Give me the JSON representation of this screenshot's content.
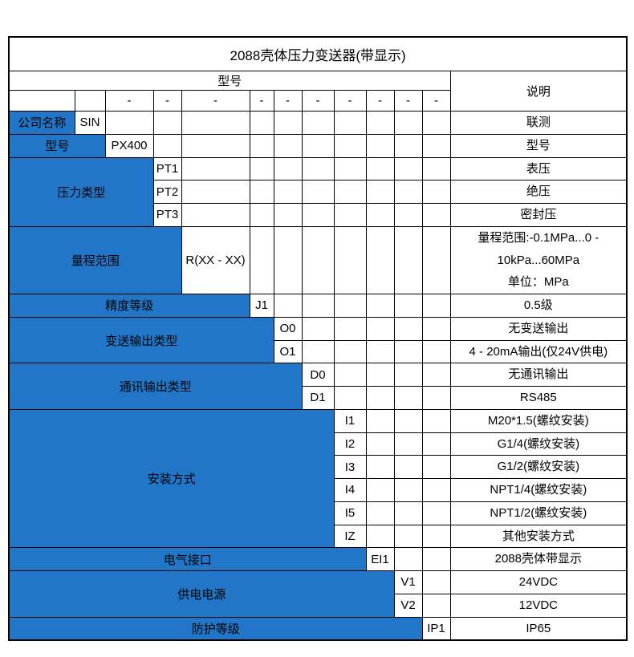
{
  "title": "2088壳体压力变送器(带显示)",
  "header": {
    "model": "型号",
    "description": "说明"
  },
  "dash": "-",
  "colors": {
    "accent_blue": "#2176C7",
    "border": "#000000",
    "text_on_blue": "#FFFFFF"
  },
  "sections": [
    {
      "label": "公司名称",
      "options": [
        {
          "code": "SIN",
          "desc": "联测"
        }
      ]
    },
    {
      "label": "型号",
      "options": [
        {
          "code": "PX400",
          "desc": "型号"
        }
      ]
    },
    {
      "label": "压力类型",
      "options": [
        {
          "code": "PT1",
          "desc": "表压"
        },
        {
          "code": "PT2",
          "desc": "绝压"
        },
        {
          "code": "PT3",
          "desc": "密封压"
        }
      ]
    },
    {
      "label": "量程范围",
      "options": [
        {
          "code": "R(XX - XX)",
          "desc": "量程范围:-0.1MPa...0 -\n10kPa...60MPa\n单位：MPa"
        }
      ]
    },
    {
      "label": "精度等级",
      "options": [
        {
          "code": "J1",
          "desc": "0.5级"
        }
      ]
    },
    {
      "label": "变送输出类型",
      "options": [
        {
          "code": "O0",
          "desc": "无变送输出"
        },
        {
          "code": "O1",
          "desc": "4 - 20mA输出(仅24V供电)"
        }
      ]
    },
    {
      "label": "通讯输出类型",
      "options": [
        {
          "code": "D0",
          "desc": "无通讯输出"
        },
        {
          "code": "D1",
          "desc": "RS485"
        }
      ]
    },
    {
      "label": "安装方式",
      "options": [
        {
          "code": "I1",
          "desc": "M20*1.5(螺纹安装)"
        },
        {
          "code": "I2",
          "desc": "G1/4(螺纹安装)"
        },
        {
          "code": "I3",
          "desc": "G1/2(螺纹安装)"
        },
        {
          "code": "I4",
          "desc": "NPT1/4(螺纹安装)"
        },
        {
          "code": "I5",
          "desc": "NPT1/2(螺纹安装)"
        },
        {
          "code": "IZ",
          "desc": "其他安装方式"
        }
      ]
    },
    {
      "label": "电气接口",
      "options": [
        {
          "code": "EI1",
          "desc": "2088壳体带显示"
        }
      ]
    },
    {
      "label": "供电电源",
      "options": [
        {
          "code": "V1",
          "desc": "24VDC"
        },
        {
          "code": "V2",
          "desc": "12VDC"
        }
      ]
    },
    {
      "label": "防护等级",
      "options": [
        {
          "code": "IP1",
          "desc": "IP65"
        }
      ]
    }
  ]
}
